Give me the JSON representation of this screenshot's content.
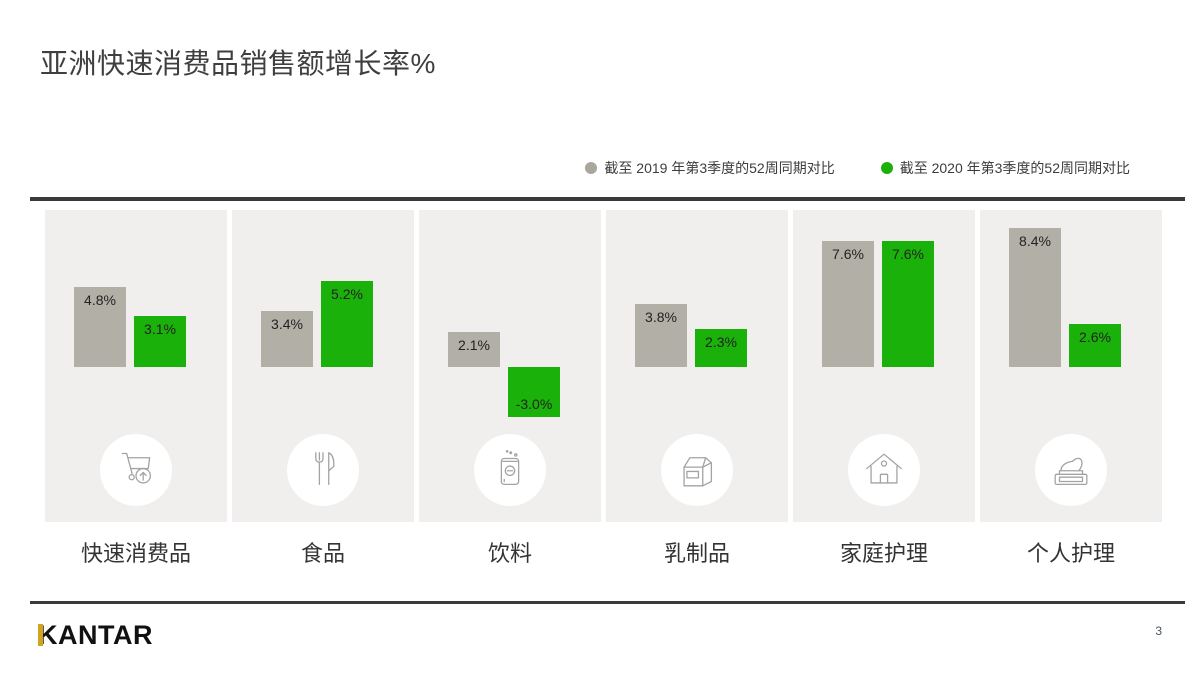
{
  "title": "亚洲快速消费品销售额增长率%",
  "legend": [
    {
      "label": "截至 2019 年第3季度的52周同期对比",
      "color": "#a9a69d"
    },
    {
      "label": "截至 2020 年第3季度的52周同期对比",
      "color": "#1ab20a"
    }
  ],
  "chart_data": {
    "type": "bar",
    "title": "亚洲快速消费品销售额增长率%",
    "categories": [
      "快速消费品",
      "食品",
      "饮料",
      "乳制品",
      "家庭护理",
      "个人护理"
    ],
    "series": [
      {
        "name": "截至 2019 年第3季度的52周同期对比",
        "values": [
          4.8,
          3.4,
          2.1,
          3.8,
          7.6,
          8.4
        ]
      },
      {
        "name": "截至 2020 年第3季度的52周同期对比",
        "values": [
          3.1,
          5.2,
          -3.0,
          2.3,
          7.6,
          2.6
        ]
      }
    ],
    "value_labels": [
      [
        "4.8%",
        "3.1%"
      ],
      [
        "3.4%",
        "5.2%"
      ],
      [
        "2.1%",
        "-3.0%"
      ],
      [
        "3.8%",
        "2.3%"
      ],
      [
        "7.6%",
        "7.6%"
      ],
      [
        "8.4%",
        "2.6%"
      ]
    ],
    "xlabel": "",
    "ylabel": "",
    "ylim": [
      -3.5,
      9.4
    ],
    "grid": false,
    "legend_position": "top-right",
    "colors": {
      "y2019": "#b2afa6",
      "y2020": "#1ab20a"
    }
  },
  "panels": [
    {
      "category": "快速消费品",
      "icon": "cart-up-icon",
      "values": {
        "y2019": 4.8,
        "y2020": 3.1
      },
      "labels": {
        "y2019": "4.8%",
        "y2020": "3.1%"
      }
    },
    {
      "category": "食品",
      "icon": "fork-knife-icon",
      "values": {
        "y2019": 3.4,
        "y2020": 5.2
      },
      "labels": {
        "y2019": "3.4%",
        "y2020": "5.2%"
      }
    },
    {
      "category": "饮料",
      "icon": "beverage-can-icon",
      "values": {
        "y2019": 2.1,
        "y2020": -3.0
      },
      "labels": {
        "y2019": "2.1%",
        "y2020": "-3.0%"
      }
    },
    {
      "category": "乳制品",
      "icon": "milk-carton-icon",
      "values": {
        "y2019": 3.8,
        "y2020": 2.3
      },
      "labels": {
        "y2019": "3.8%",
        "y2020": "2.3%"
      }
    },
    {
      "category": "家庭护理",
      "icon": "house-icon",
      "values": {
        "y2019": 7.6,
        "y2020": 7.6
      },
      "labels": {
        "y2019": "7.6%",
        "y2020": "7.6%"
      }
    },
    {
      "category": "个人护理",
      "icon": "cream-jar-icon",
      "values": {
        "y2019": 8.4,
        "y2020": 2.6
      },
      "labels": {
        "y2019": "8.4%",
        "y2020": "2.6%"
      }
    }
  ],
  "footer": {
    "logo": "KANTAR",
    "page_number": "3"
  }
}
